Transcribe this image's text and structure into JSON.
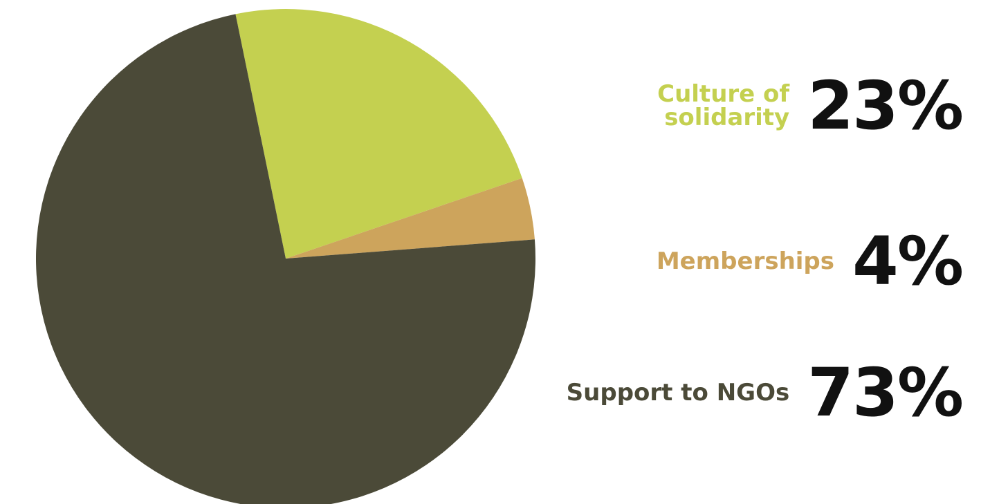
{
  "chart_data": {
    "type": "pie",
    "title": "",
    "slices": [
      {
        "label": "Culture of\nsolidarity",
        "value": 23,
        "display": "23%",
        "color": "#c4d050"
      },
      {
        "label": "Memberships",
        "value": 4,
        "display": "4%",
        "color": "#cda45c"
      },
      {
        "label": "Support to NGOs",
        "value": 73,
        "display": "73%",
        "color": "#4b4a38"
      }
    ],
    "legend_position": "right"
  }
}
